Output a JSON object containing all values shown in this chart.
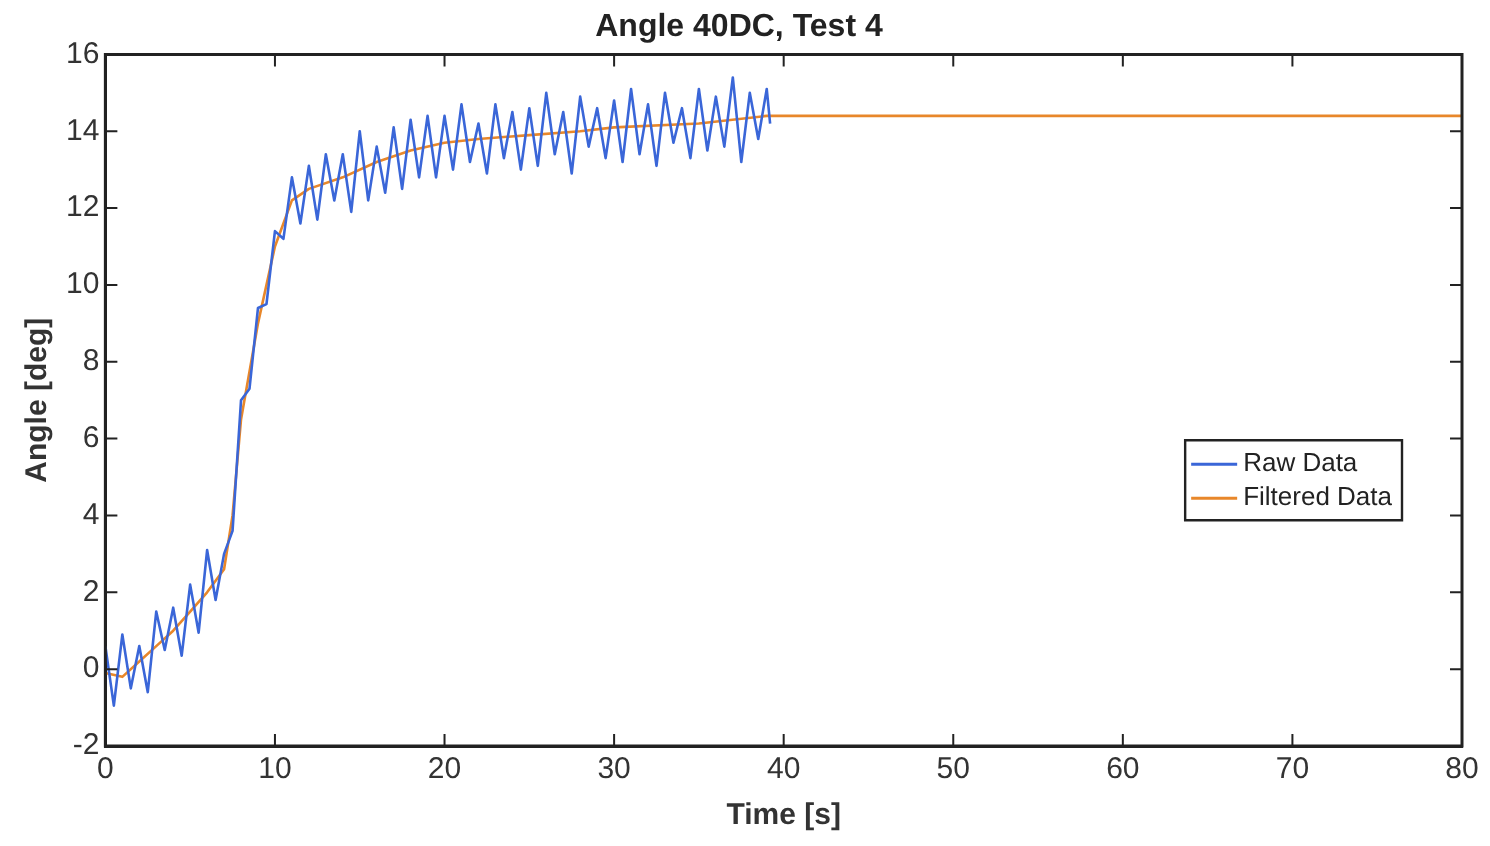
{
  "chart_data": {
    "type": "line",
    "title": "Angle 40DC, Test 4",
    "xlabel": "Time [s]",
    "ylabel": "Angle [deg]",
    "xlim": [
      0,
      80
    ],
    "xticks": [
      0,
      10,
      20,
      30,
      40,
      50,
      60,
      70,
      80
    ],
    "ylim": [
      -2,
      16
    ],
    "yticks": [
      -2,
      0,
      2,
      4,
      6,
      8,
      10,
      12,
      14,
      16
    ],
    "grid": false,
    "legend": "right",
    "marker": "none",
    "line_style": "solid",
    "series": [
      {
        "name": "Raw Data",
        "color": "#3a66d8",
        "x": [
          0,
          0.5,
          1,
          1.5,
          2,
          2.5,
          3,
          3.5,
          4,
          4.5,
          5,
          5.5,
          6,
          6.5,
          7,
          7.5,
          8,
          8.5,
          9,
          9.5,
          10,
          10.5,
          11,
          11.5,
          12,
          12.5,
          13,
          13.5,
          14,
          14.5,
          15,
          15.5,
          16,
          16.5,
          17,
          17.5,
          18,
          18.5,
          19,
          19.5,
          20,
          20.5,
          21,
          21.5,
          22,
          22.5,
          23,
          23.5,
          24,
          24.5,
          25,
          25.5,
          26,
          26.5,
          27,
          27.5,
          28,
          28.5,
          29,
          29.5,
          30,
          30.5,
          31,
          31.5,
          32,
          32.5,
          33,
          33.5,
          34,
          34.5,
          35,
          35.5,
          36,
          36.5,
          37,
          37.5,
          38,
          38.5,
          39,
          39.2
        ],
        "values": [
          0.6,
          -0.95,
          0.9,
          -0.5,
          0.6,
          -0.6,
          1.5,
          0.5,
          1.6,
          0.35,
          2.2,
          0.95,
          3.1,
          1.8,
          3.0,
          3.6,
          7.0,
          7.3,
          9.4,
          9.5,
          11.4,
          11.2,
          12.8,
          11.6,
          13.1,
          11.7,
          13.4,
          12.2,
          13.4,
          11.9,
          14.0,
          12.2,
          13.6,
          12.4,
          14.1,
          12.5,
          14.3,
          12.8,
          14.4,
          12.8,
          14.4,
          13.0,
          14.7,
          13.2,
          14.2,
          12.9,
          14.7,
          13.3,
          14.5,
          13.0,
          14.6,
          13.1,
          15.0,
          13.4,
          14.5,
          12.9,
          14.9,
          13.6,
          14.6,
          13.3,
          14.8,
          13.2,
          15.1,
          13.4,
          14.7,
          13.1,
          15.0,
          13.7,
          14.6,
          13.3,
          15.1,
          13.5,
          14.9,
          13.6,
          15.4,
          13.2,
          15.0,
          13.8,
          15.1,
          14.2
        ]
      },
      {
        "name": "Filtered Data",
        "color": "#e8872a",
        "x": [
          0,
          1,
          2,
          3,
          4,
          5,
          6,
          7,
          7.5,
          8,
          9,
          10,
          11,
          12,
          14,
          16,
          18,
          20,
          22,
          25,
          28,
          30,
          35,
          39,
          80
        ],
        "values": [
          -0.1,
          -0.2,
          0.2,
          0.6,
          1.0,
          1.5,
          2.0,
          2.6,
          4.0,
          6.5,
          9.0,
          11.0,
          12.2,
          12.5,
          12.8,
          13.2,
          13.5,
          13.7,
          13.8,
          13.9,
          14.0,
          14.1,
          14.2,
          14.4,
          14.4
        ]
      }
    ]
  }
}
